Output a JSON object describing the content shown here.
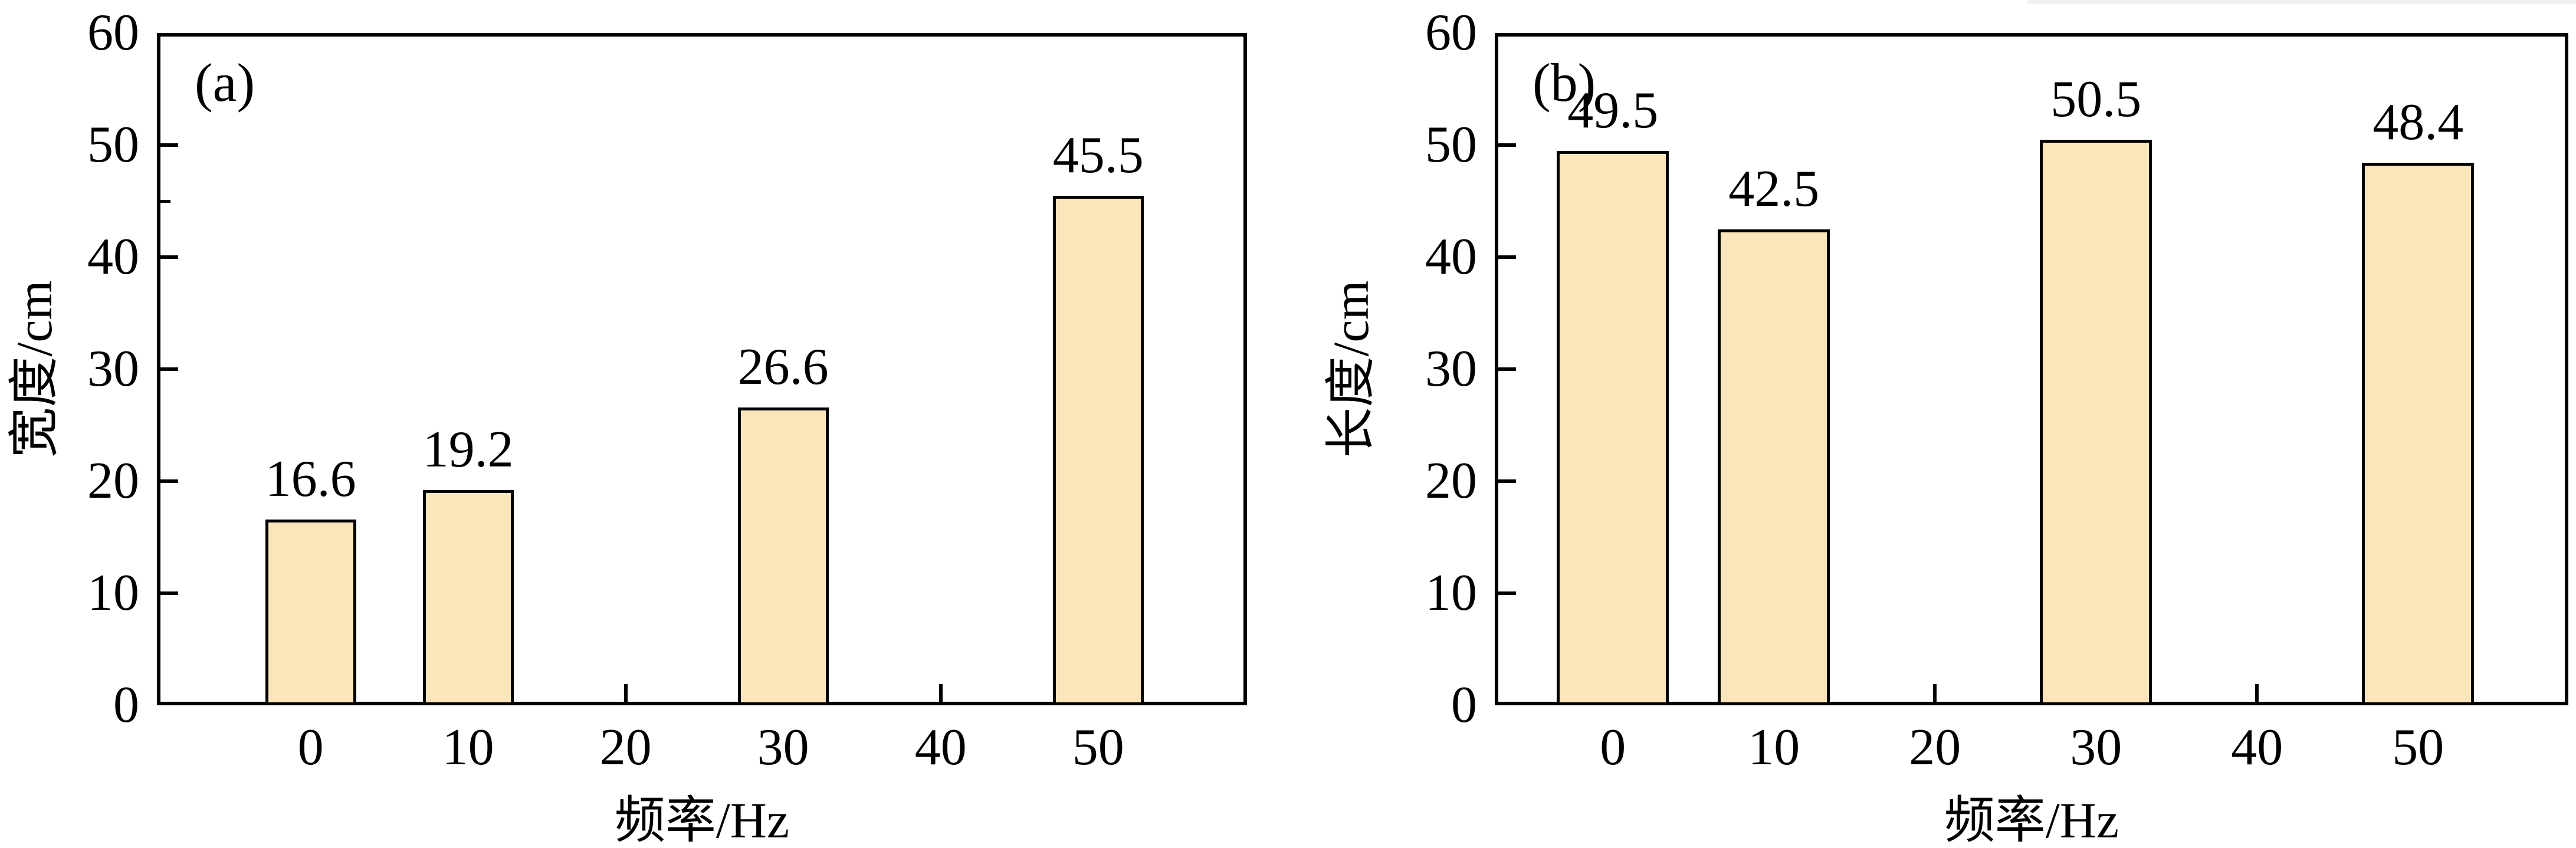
{
  "figure": {
    "background": "#ffffff",
    "artifact_strip_color": "#f1f1f2"
  },
  "chart_data": [
    {
      "type": "bar",
      "panel_label": "(a)",
      "ylabel": "宽度/cm",
      "xlabel": "频率/Hz",
      "ylim": [
        0,
        60
      ],
      "y_tick_labels": [
        "0",
        "10",
        "20",
        "30",
        "40",
        "50",
        "60"
      ],
      "y_minor_ticks": [
        45
      ],
      "x_tick_labels": [
        "0",
        "10",
        "20",
        "30",
        "40",
        "50"
      ],
      "categories": [
        "0",
        "10",
        "30",
        "50"
      ],
      "values": [
        16.6,
        19.2,
        26.6,
        45.5
      ],
      "bars": [
        {
          "category": "0",
          "value": 16.6,
          "label": "16.6"
        },
        {
          "category": "10",
          "value": 19.2,
          "label": "19.2"
        },
        {
          "category": "30",
          "value": 26.6,
          "label": "26.6"
        },
        {
          "category": "50",
          "value": 45.5,
          "label": "45.5"
        }
      ],
      "bar_color": "#FBE5BB",
      "bar_border_color": "#000000",
      "grid": false,
      "legend": "none"
    },
    {
      "type": "bar",
      "panel_label": "(b)",
      "ylabel": "长度/cm",
      "xlabel": "频率/Hz",
      "ylim": [
        0,
        60
      ],
      "y_tick_labels": [
        "0",
        "10",
        "20",
        "30",
        "40",
        "50",
        "60"
      ],
      "y_minor_ticks": [],
      "x_tick_labels": [
        "0",
        "10",
        "20",
        "30",
        "40",
        "50"
      ],
      "categories": [
        "0",
        "10",
        "30",
        "50"
      ],
      "values": [
        49.5,
        42.5,
        50.5,
        48.4
      ],
      "bars": [
        {
          "category": "0",
          "value": 49.5,
          "label": "49.5"
        },
        {
          "category": "10",
          "value": 42.5,
          "label": "42.5"
        },
        {
          "category": "30",
          "value": 50.5,
          "label": "50.5"
        },
        {
          "category": "50",
          "value": 48.4,
          "label": "48.4"
        }
      ],
      "bar_color": "#FBE5BB",
      "bar_border_color": "#000000",
      "grid": false,
      "legend": "none"
    }
  ]
}
